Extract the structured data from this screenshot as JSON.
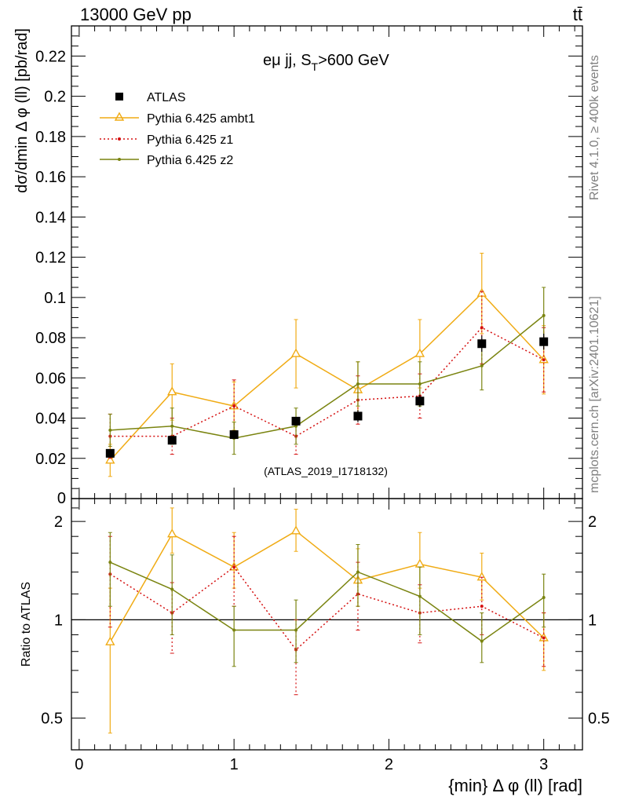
{
  "header": {
    "energy_label": "13000 GeV pp",
    "process_label": "tt̄"
  },
  "side": {
    "rivet_label": "Rivet 4.1.0, ≥ 400k events",
    "mcplots_label": "mcplots.cern.ch [arXiv:2401.10621]"
  },
  "chart_data": [
    {
      "type": "line",
      "title": "eμ jj, S_T>600 GeV",
      "title_main": "eμ jj, S",
      "title_sub": "T",
      "title_tail": ">600 GeV",
      "ylabel": "dσ/dmin Δ φ (ll) [pb/rad]",
      "watermark": "(ATLAS_2019_I1718132)",
      "xlim": [
        -0.05,
        3.25
      ],
      "ylim": [
        0,
        0.235
      ],
      "y_ticks": [
        0.02,
        0.04,
        0.06,
        0.08,
        0.1,
        0.12,
        0.14,
        0.16,
        0.18,
        0.2,
        0.22
      ],
      "y_tick_labels": [
        "0.02",
        "0.04",
        "0.06",
        "0.08",
        "0.1",
        "0.12",
        "0.14",
        "0.16",
        "0.18",
        "0.2",
        "0.22"
      ],
      "y_zero_label": "0",
      "x": [
        0.2,
        0.6,
        1.0,
        1.4,
        1.8,
        2.2,
        2.6,
        3.0
      ],
      "legend": [
        "ATLAS",
        "Pythia 6.425 ambt1",
        "Pythia 6.425 z1",
        "Pythia 6.425 z2"
      ],
      "series": [
        {
          "name": "ATLAS",
          "color": "#000000",
          "values": [
            0.0225,
            0.029,
            0.0318,
            0.0385,
            0.041,
            0.0485,
            0.077,
            0.078
          ],
          "err": [
            0.002,
            0.002,
            0.002,
            0.002,
            0.003,
            0.003,
            0.004,
            0.004
          ]
        },
        {
          "name": "Pythia 6.425 ambt1",
          "color": "#f0ab14",
          "values": [
            0.019,
            0.053,
            0.046,
            0.072,
            0.054,
            0.072,
            0.102,
            0.069
          ],
          "err": [
            0.008,
            0.014,
            0.012,
            0.017,
            0.014,
            0.017,
            0.02,
            0.017
          ]
        },
        {
          "name": "Pythia 6.425 z1",
          "color": "#d51010",
          "values": [
            0.031,
            0.031,
            0.046,
            0.031,
            0.049,
            0.051,
            0.085,
            0.069
          ],
          "err": [
            0.011,
            0.009,
            0.013,
            0.009,
            0.012,
            0.011,
            0.018,
            0.016
          ]
        },
        {
          "name": "Pythia 6.425 z2",
          "color": "#7a8410",
          "values": [
            0.034,
            0.036,
            0.03,
            0.036,
            0.057,
            0.057,
            0.066,
            0.091
          ],
          "err": [
            0.008,
            0.009,
            0.008,
            0.009,
            0.011,
            0.011,
            0.012,
            0.014
          ]
        }
      ]
    },
    {
      "type": "line",
      "ylabel": "Ratio to ATLAS",
      "xlabel": "{min} Δ φ (ll) [rad]",
      "xlim": [
        -0.05,
        3.25
      ],
      "ylim": [
        0.4,
        2.35
      ],
      "y_scale": "log",
      "y_ticks": [
        0.5,
        1,
        2
      ],
      "y_tick_labels": [
        "0.5",
        "1",
        "2"
      ],
      "x_ticks": [
        0,
        1,
        2,
        3
      ],
      "x_tick_labels": [
        "0",
        "1",
        "2",
        "3"
      ],
      "x": [
        0.2,
        0.6,
        1.0,
        1.4,
        1.8,
        2.2,
        2.6,
        3.0
      ],
      "series": [
        {
          "name": "Pythia 6.425 ambt1",
          "color": "#f0ab14",
          "values": [
            0.855,
            1.83,
            1.45,
            1.87,
            1.32,
            1.48,
            1.35,
            0.88
          ],
          "lo": [
            0.45,
            1.6,
            1.25,
            1.62,
            1.1,
            1.25,
            1.15,
            0.7
          ],
          "hi": [
            1.25,
            2.2,
            1.85,
            2.18,
            1.65,
            1.85,
            1.6,
            1.05
          ]
        },
        {
          "name": "Pythia 6.425 z1",
          "color": "#d51010",
          "values": [
            1.38,
            1.05,
            1.45,
            0.81,
            1.2,
            1.05,
            1.1,
            0.88
          ],
          "lo": [
            0.95,
            0.79,
            1.1,
            0.59,
            0.93,
            0.85,
            0.9,
            0.72
          ],
          "hi": [
            1.8,
            1.3,
            1.8,
            1.0,
            1.5,
            1.28,
            1.35,
            1.05
          ]
        },
        {
          "name": "Pythia 6.425 z2",
          "color": "#7a8410",
          "values": [
            1.5,
            1.24,
            0.93,
            0.93,
            1.4,
            1.18,
            0.86,
            1.17
          ],
          "lo": [
            1.1,
            0.9,
            0.72,
            0.74,
            1.1,
            0.9,
            0.74,
            0.95
          ],
          "hi": [
            1.85,
            1.58,
            1.1,
            1.15,
            1.7,
            1.45,
            1.05,
            1.38
          ]
        }
      ]
    }
  ]
}
